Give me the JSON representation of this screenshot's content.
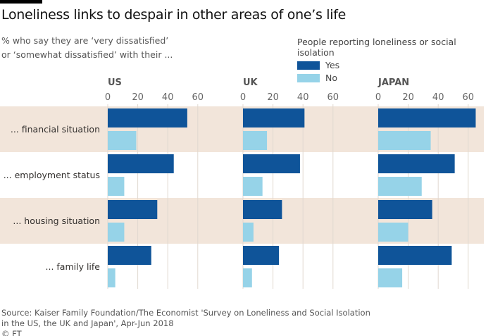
{
  "title": "Loneliness links to despair in other areas of one’s life",
  "subtitle_line1": "% who say they are ‘very dissatisfied’",
  "subtitle_line2": "or ‘somewhat dissatisfied’ with their ...",
  "source_line1": "Source: Kaiser Family Foundation/The Economist 'Survey on Loneliness and Social Isolation",
  "source_line2": "in the US, the UK and Japan', Apr-Jun 2018",
  "credit": "© FT",
  "colors": {
    "yes": "#0f5499",
    "no": "#96d3e8",
    "band": "#f2e5da",
    "grid": "#e0d8d0"
  },
  "chart_data": {
    "type": "bar",
    "title": "Loneliness links to despair in other areas of one’s life",
    "legend_title": "People reporting loneliness or social isolation",
    "legend": [
      "Yes",
      "No"
    ],
    "legend_placement": "top-right",
    "categories": [
      "... financial situation",
      "... employment status",
      "... housing situation",
      "... family life"
    ],
    "xlim": [
      0,
      65
    ],
    "ticks": [
      "0",
      "20",
      "40",
      "60"
    ],
    "tick_values": [
      0,
      20,
      40,
      60
    ],
    "panels": [
      {
        "name": "US",
        "series": [
          {
            "name": "Yes",
            "values": [
              53,
              44,
              33,
              29
            ]
          },
          {
            "name": "No",
            "values": [
              19,
              11,
              11,
              5
            ]
          }
        ]
      },
      {
        "name": "UK",
        "series": [
          {
            "name": "Yes",
            "values": [
              41,
              38,
              26,
              24
            ]
          },
          {
            "name": "No",
            "values": [
              16,
              13,
              7,
              6
            ]
          }
        ]
      },
      {
        "name": "JAPAN",
        "series": [
          {
            "name": "Yes",
            "values": [
              65,
              51,
              36,
              49
            ]
          },
          {
            "name": "No",
            "values": [
              35,
              29,
              20,
              16
            ]
          }
        ]
      }
    ]
  }
}
